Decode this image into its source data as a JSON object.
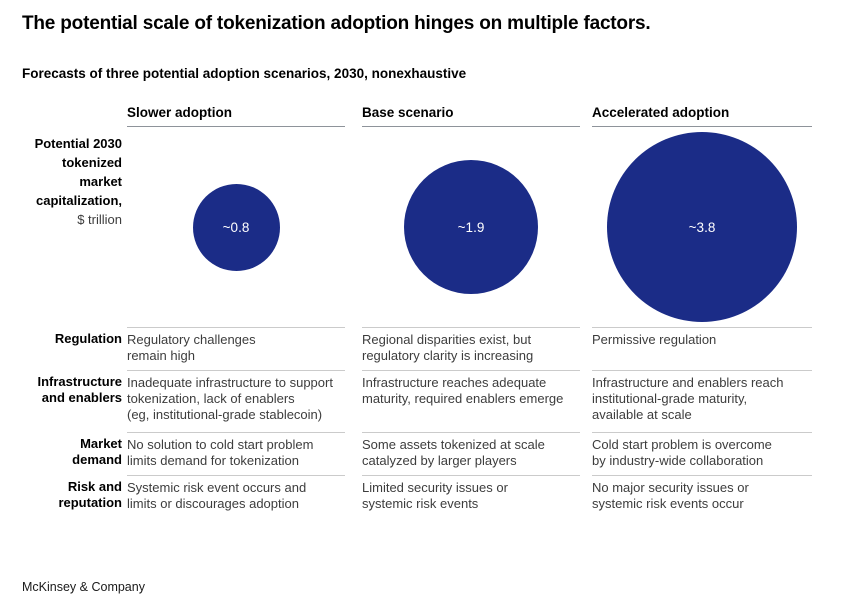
{
  "page": {
    "title": "The potential scale of tokenization adoption hinges on multiple factors.",
    "subtitle": "Forecasts of three potential adoption scenarios, 2030, nonexhaustive",
    "footer": "McKinsey & Company"
  },
  "colors": {
    "bubble_blue": "#1b2c87",
    "header_rule": "#8e939a",
    "row_rule": "#cbcbcb",
    "body_text": "#3d3d3d"
  },
  "chart_data": {
    "type": "bubble",
    "title": "Forecasts of three potential adoption scenarios, 2030, nonexhaustive",
    "metric_label": "Potential 2030\ntokenized\nmarket\ncapitalization,",
    "metric_unit": "$ trillion",
    "scenarios": [
      "Slower adoption",
      "Base scenario",
      "Accelerated adoption"
    ],
    "values": [
      0.8,
      1.9,
      3.8
    ],
    "value_labels": [
      "~0.8",
      "~1.9",
      "~3.8"
    ],
    "bubble_area_proportional_to_value": true,
    "factors": [
      {
        "label": "Regulation",
        "cells": [
          "Regulatory challenges\nremain high",
          "Regional disparities exist, but\nregulatory clarity is increasing",
          "Permissive regulation"
        ]
      },
      {
        "label": "Infrastructure\nand enablers",
        "cells": [
          "Inadequate infrastructure to support\ntokenization, lack of enablers\n(eg, institutional-grade stablecoin)",
          "Infrastructure reaches adequate\nmaturity, required enablers emerge",
          "Infrastructure and enablers reach\ninstitutional-grade maturity,\navailable at scale"
        ]
      },
      {
        "label": "Market\ndemand",
        "cells": [
          "No solution to cold start problem\nlimits demand for tokenization",
          "Some assets tokenized at scale\ncatalyzed by larger players",
          "Cold start problem is overcome\nby industry-wide collaboration"
        ]
      },
      {
        "label": "Risk and\nreputation",
        "cells": [
          "Systemic risk event occurs and\nlimits or discourages adoption",
          "Limited security issues or\nsystemic risk events",
          "No major security issues or\nsystemic risk events occur"
        ]
      }
    ]
  }
}
